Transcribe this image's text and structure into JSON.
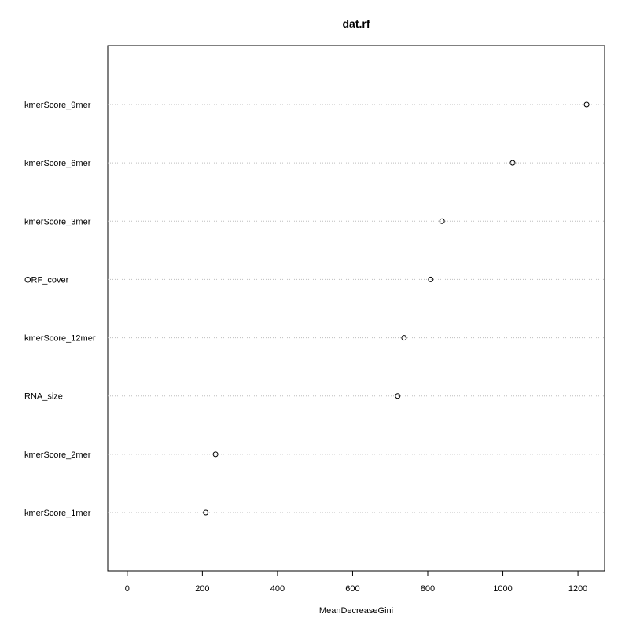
{
  "chart_data": {
    "type": "scatter",
    "title": "dat.rf",
    "xlabel": "MeanDecreaseGini",
    "ylabel": "",
    "categories": [
      "kmerScore_9mer",
      "kmerScore_6mer",
      "kmerScore_3mer",
      "ORF_cover",
      "kmerScore_12mer",
      "RNA_size",
      "kmerScore_2mer",
      "kmerScore_1mer"
    ],
    "values": [
      1223,
      1026,
      838,
      808,
      737,
      720,
      235,
      209
    ],
    "xlim": [
      -52,
      1271
    ],
    "xticks": [
      0,
      200,
      400,
      600,
      800,
      1000,
      1200
    ],
    "grid": "horizontal dotted",
    "colors": {
      "point": "#000000",
      "grid": "#bebebe",
      "axis": "#000000"
    }
  }
}
